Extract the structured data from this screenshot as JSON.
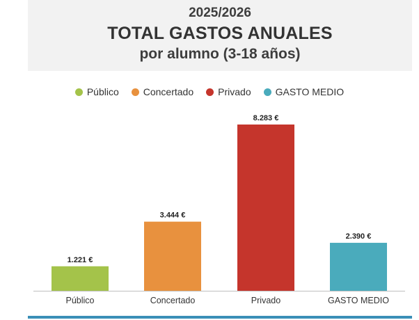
{
  "header": {
    "year": "2025/2026",
    "title": "TOTAL GASTOS ANUALES",
    "subtitle": "por alumno (3-18 años)"
  },
  "legend": [
    {
      "label": "Público",
      "color": "#a4c34a"
    },
    {
      "label": "Concertado",
      "color": "#e8913e"
    },
    {
      "label": "Privado",
      "color": "#c5352c"
    },
    {
      "label": "GASTO MEDIO",
      "color": "#4aabbc"
    }
  ],
  "chart_data": {
    "type": "bar",
    "title": "TOTAL GASTOS ANUALES",
    "subtitle": "por alumno (3-18 años)",
    "categories": [
      "Público",
      "Concertado",
      "Privado",
      "GASTO MEDIO"
    ],
    "values": [
      1221,
      3444,
      8283,
      2390
    ],
    "value_labels": [
      "1.221 €",
      "3.444 €",
      "8.283 €",
      "2.390 €"
    ],
    "colors": [
      "#a4c34a",
      "#e8913e",
      "#c5352c",
      "#4aabbc"
    ],
    "xlabel": "",
    "ylabel": "",
    "ylim": [
      0,
      8283
    ],
    "grid": false,
    "legend_position": "top-center"
  }
}
